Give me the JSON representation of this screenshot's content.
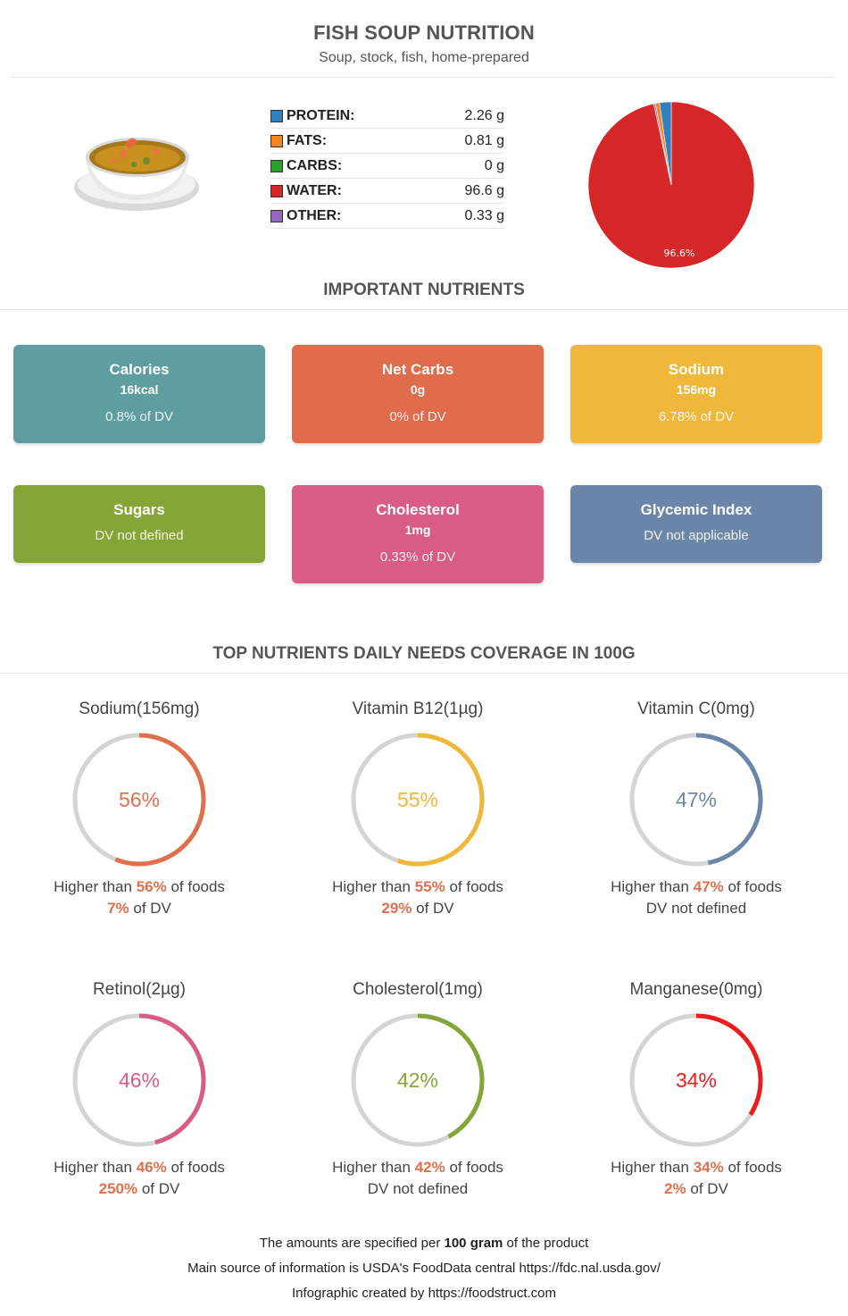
{
  "header": {
    "title": "FISH SOUP NUTRITION",
    "subtitle": "Soup, stock, fish, home-prepared"
  },
  "macros": [
    {
      "label": "PROTEIN:",
      "value": "2.26 g",
      "amount": 2.26,
      "color": "#2f7fc1"
    },
    {
      "label": "FATS:",
      "value": "0.81 g",
      "amount": 0.81,
      "color": "#f5861f"
    },
    {
      "label": "CARBS:",
      "value": "0 g",
      "amount": 0,
      "color": "#2ca02c"
    },
    {
      "label": "WATER:",
      "value": "96.6 g",
      "amount": 96.6,
      "color": "#d62728"
    },
    {
      "label": "OTHER:",
      "value": "0.33 g",
      "amount": 0.33,
      "color": "#9467bd"
    }
  ],
  "chart_data": {
    "type": "pie",
    "categories": [
      "PROTEIN",
      "FATS",
      "CARBS",
      "WATER",
      "OTHER"
    ],
    "values": [
      2.26,
      0.81,
      0,
      96.6,
      0.33
    ],
    "slice_label": "96.6%"
  },
  "important": {
    "title": "IMPORTANT NUTRIENTS",
    "cards": [
      {
        "name": "Calories",
        "amount": "16kcal",
        "dv": "0.8% of DV",
        "color": "#5f9ea0"
      },
      {
        "name": "Net Carbs",
        "amount": "0g",
        "dv": "0% of DV",
        "color": "#e06c4c"
      },
      {
        "name": "Sodium",
        "amount": "156mg",
        "dv": "6.78% of DV",
        "color": "#f0b83a"
      },
      {
        "name": "Sugars",
        "amount": "",
        "dv": "DV not defined",
        "color": "#84a637"
      },
      {
        "name": "Cholesterol",
        "amount": "1mg",
        "dv": "0.33% of DV",
        "color": "#d85c86"
      },
      {
        "name": "Glycemic Index",
        "amount": "",
        "dv": "DV not applicable",
        "color": "#6b86a8"
      }
    ]
  },
  "coverage": {
    "title": "TOP NUTRIENTS DAILY NEEDS COVERAGE IN 100G",
    "items": [
      {
        "name": "Sodium(156mg)",
        "pct": 56,
        "pct_label": "56%",
        "dv": "7%",
        "dv_suffix": " of DV",
        "color": "#e0704c"
      },
      {
        "name": "Vitamin B12(1µg)",
        "pct": 55,
        "pct_label": "55%",
        "dv": "29%",
        "dv_suffix": " of DV",
        "color": "#f0b83a"
      },
      {
        "name": "Vitamin C(0mg)",
        "pct": 47,
        "pct_label": "47%",
        "dv": "",
        "dv_suffix": "DV not defined",
        "color": "#6b86a8"
      },
      {
        "name": "Retinol(2µg)",
        "pct": 46,
        "pct_label": "46%",
        "dv": "250%",
        "dv_suffix": " of DV",
        "color": "#d85c86"
      },
      {
        "name": "Cholesterol(1mg)",
        "pct": 42,
        "pct_label": "42%",
        "dv": "",
        "dv_suffix": "DV not defined",
        "color": "#84a637"
      },
      {
        "name": "Manganese(0mg)",
        "pct": 34,
        "pct_label": "34%",
        "dv": "2%",
        "dv_suffix": " of DV",
        "color": "#ee1c1c"
      }
    ],
    "higher_prefix": "Higher than ",
    "higher_suffix": " of foods"
  },
  "footer": {
    "line1_pre": "The amounts are specified per ",
    "line1_bold": "100 gram",
    "line1_post": " of the product",
    "line2": "Main source of information is USDA's FoodData central https://fdc.nal.usda.gov/",
    "line3": "Infographic created by https://foodstruct.com"
  }
}
